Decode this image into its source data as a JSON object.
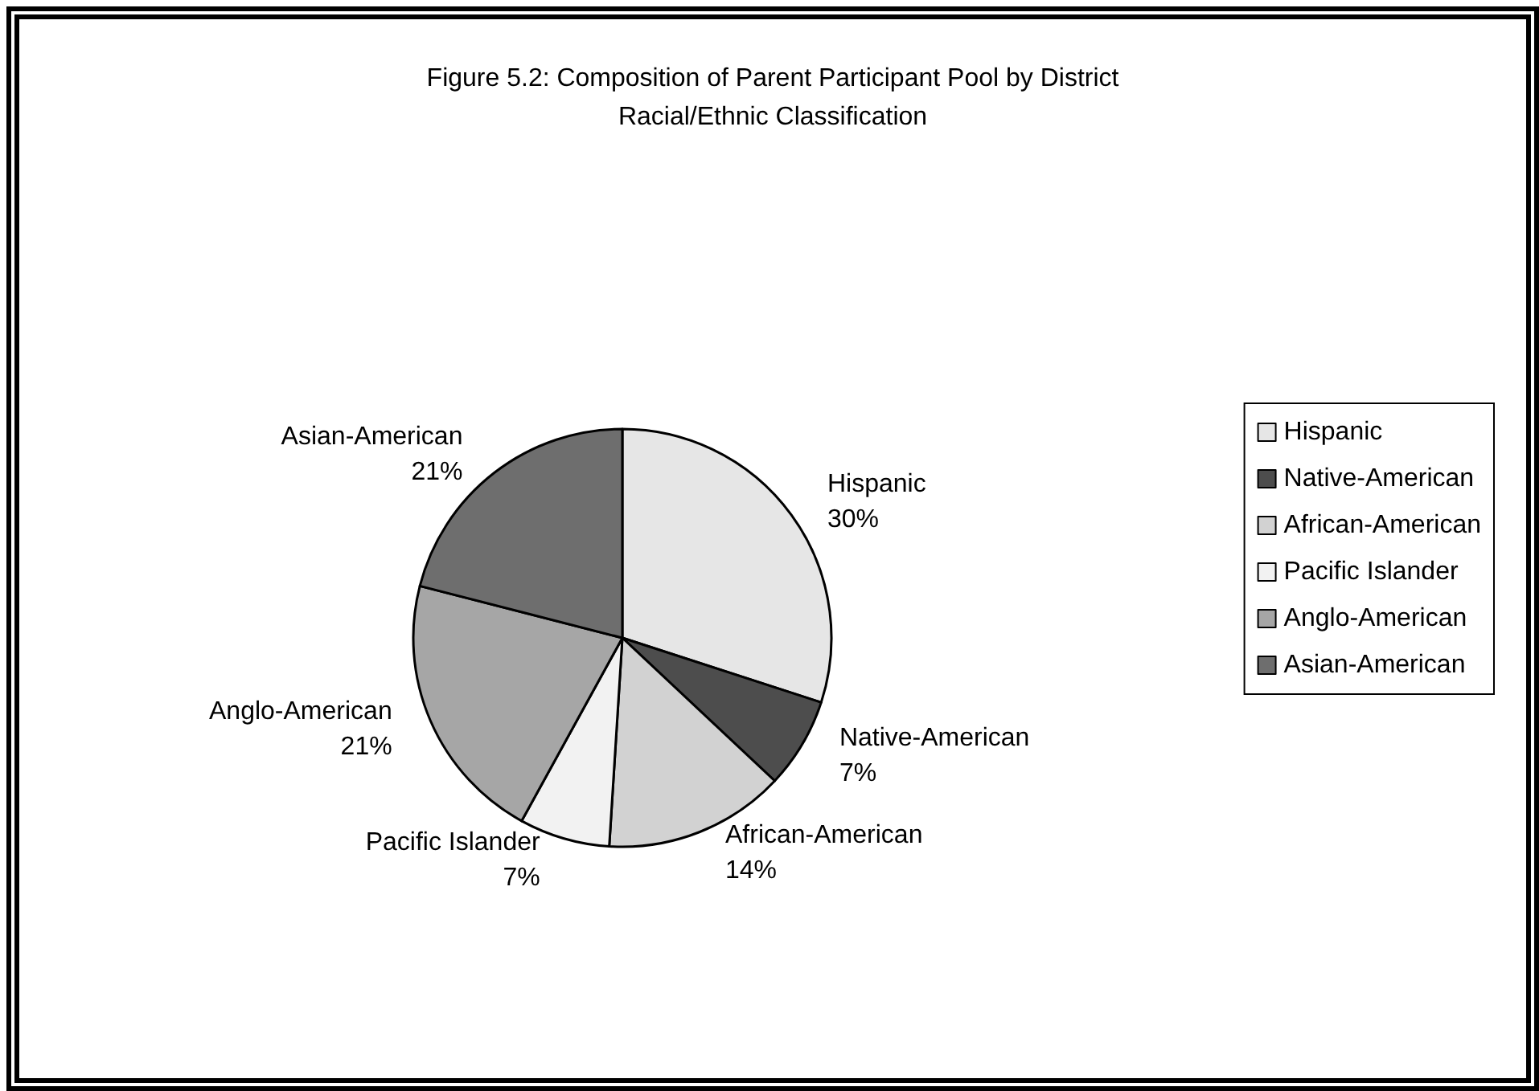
{
  "chart_data": {
    "type": "pie",
    "title": "Figure 5.2: Composition of Parent Participant Pool by District\nRacial/Ethnic Classification",
    "categories": [
      "Hispanic",
      "Native-American",
      "African-American",
      "Pacific Islander",
      "Anglo-American",
      "Asian-American"
    ],
    "values": [
      30,
      7,
      14,
      7,
      21,
      21
    ],
    "value_labels": [
      "30%",
      "7%",
      "14%",
      "7%",
      "21%",
      "21%"
    ],
    "colors": [
      "#e6e6e6",
      "#4d4d4d",
      "#d2d2d2",
      "#f2f2f2",
      "#a6a6a6",
      "#6e6e6e"
    ],
    "legend": "right"
  }
}
